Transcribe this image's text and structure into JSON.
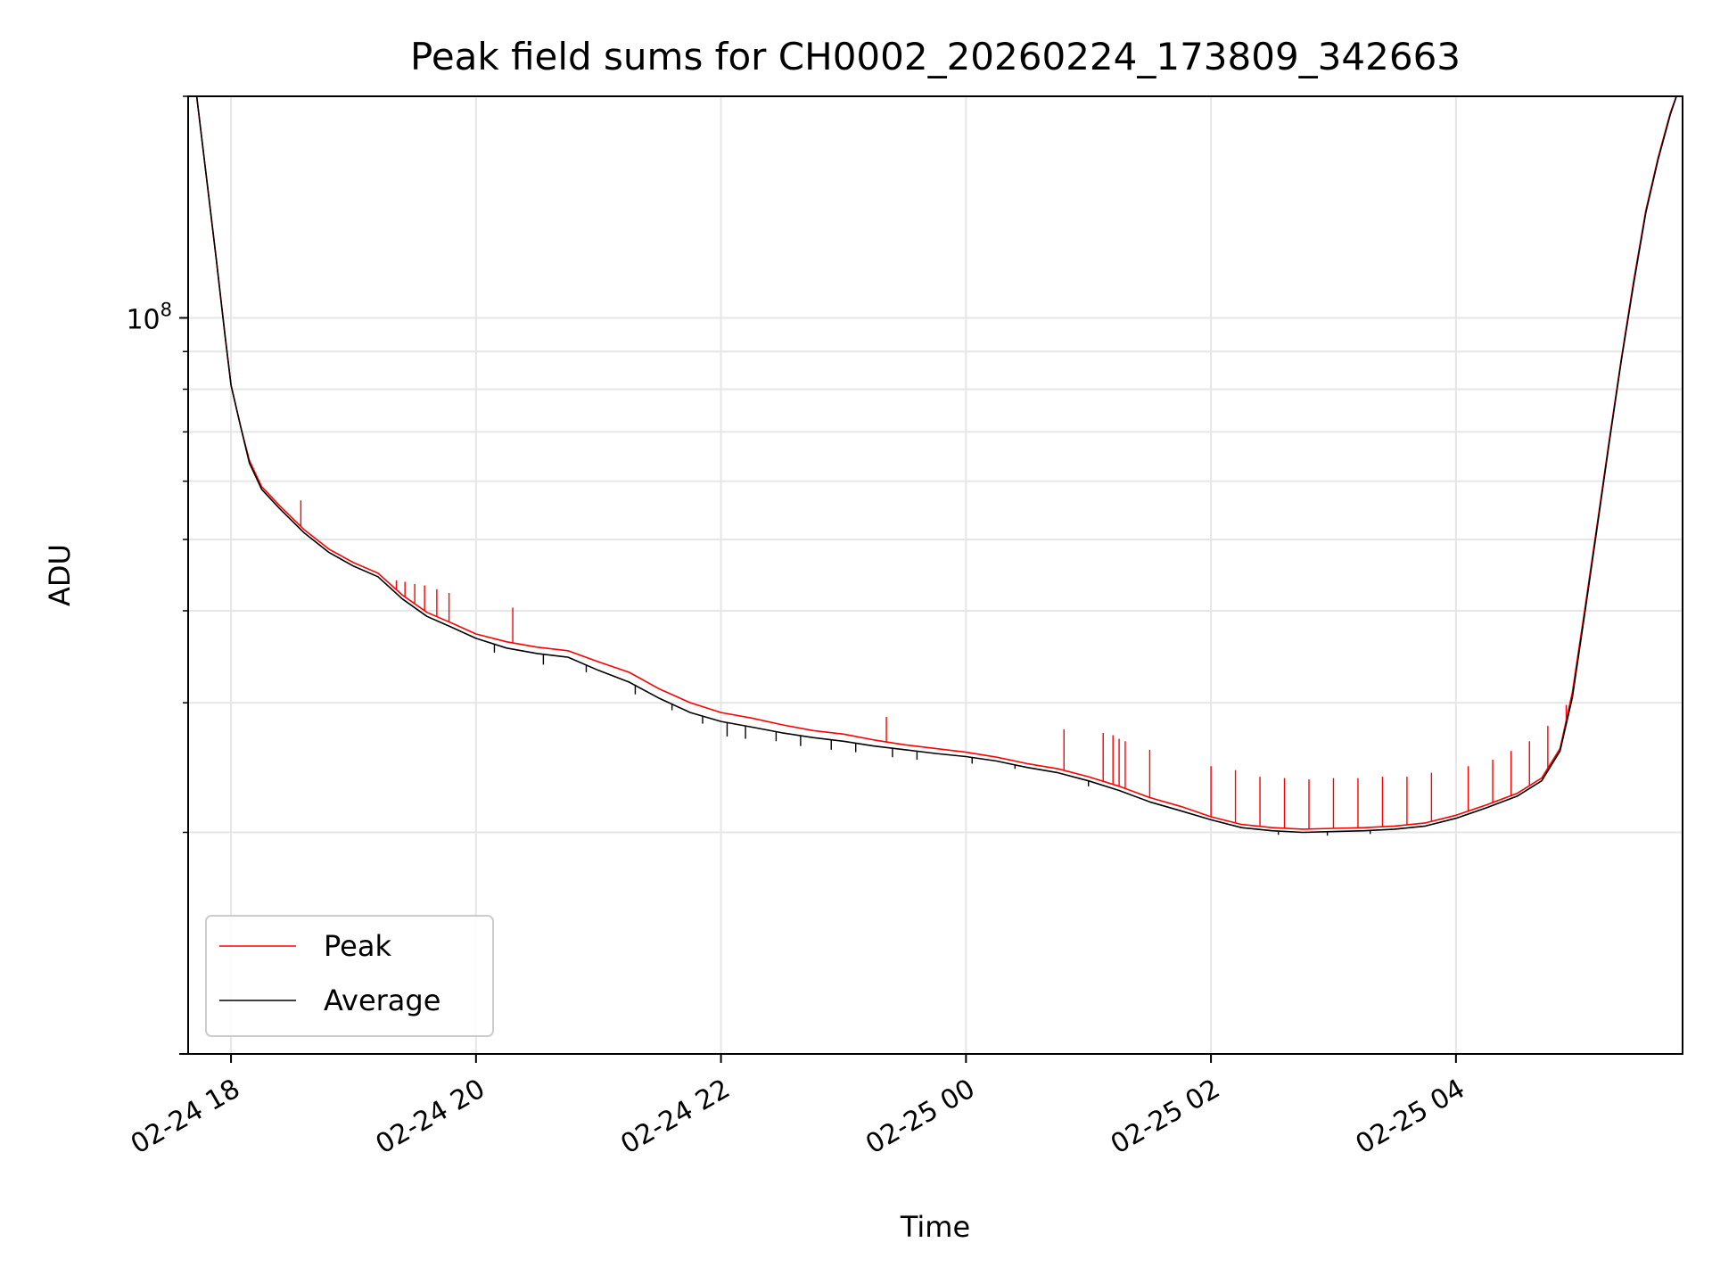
{
  "chart_data": {
    "type": "line",
    "title": "Peak field sums for CH0002_20260224_173809_342663",
    "xlabel": "Time",
    "ylabel": "ADU",
    "yscale": "log",
    "ylim": [
      10000000,
      200000000
    ],
    "xlim": [
      17.65,
      29.85
    ],
    "y_tick_labels": [
      {
        "value": 100000000,
        "base": "10",
        "exp": "8"
      }
    ],
    "x_ticks": [
      {
        "value": 18,
        "label": "02-24 18"
      },
      {
        "value": 20,
        "label": "02-24 20"
      },
      {
        "value": 22,
        "label": "02-24 22"
      },
      {
        "value": 24,
        "label": "02-25 00"
      },
      {
        "value": 26,
        "label": "02-25 02"
      },
      {
        "value": 28,
        "label": "02-25 04"
      }
    ],
    "grid": true,
    "legend_position": "lower-left",
    "series": [
      {
        "name": "Peak",
        "color": "#ff0000",
        "x": [
          17.72,
          17.8,
          17.88,
          17.95,
          18.0,
          18.08,
          18.15,
          18.25,
          18.4,
          18.6,
          18.8,
          19.0,
          19.2,
          19.4,
          19.6,
          19.8,
          20.0,
          20.25,
          20.5,
          20.75,
          21.0,
          21.25,
          21.5,
          21.75,
          22.0,
          22.25,
          22.5,
          22.75,
          23.0,
          23.25,
          23.5,
          23.75,
          24.0,
          24.25,
          24.5,
          24.75,
          25.0,
          25.25,
          25.5,
          25.75,
          26.0,
          26.25,
          26.5,
          26.75,
          27.0,
          27.25,
          27.5,
          27.75,
          28.0,
          28.25,
          28.5,
          28.7,
          28.85,
          28.95,
          29.05,
          29.15,
          29.25,
          29.35,
          29.45,
          29.55,
          29.65,
          29.75,
          29.8
        ],
        "y": [
          200000000,
          155000000,
          120000000,
          95000000,
          81000000,
          71000000,
          64000000,
          59000000,
          55500000,
          51500000,
          48500000,
          46500000,
          45000000,
          42000000,
          39800000,
          38500000,
          37200000,
          36300000,
          35700000,
          35300000,
          34100000,
          33000000,
          31300000,
          30000000,
          29100000,
          28600000,
          28000000,
          27500000,
          27200000,
          26700000,
          26300000,
          26000000,
          25700000,
          25300000,
          24800000,
          24400000,
          23800000,
          23100000,
          22300000,
          21700000,
          21000000,
          20500000,
          20300000,
          20200000,
          20250000,
          20300000,
          20400000,
          20600000,
          21100000,
          21800000,
          22600000,
          23700000,
          26000000,
          31000000,
          40000000,
          52000000,
          68000000,
          88000000,
          112000000,
          140000000,
          165000000,
          190000000,
          200000000
        ],
        "spikes": [
          {
            "x": 18.57,
            "y": 56500000
          },
          {
            "x": 19.35,
            "y": 44000000
          },
          {
            "x": 19.42,
            "y": 43800000
          },
          {
            "x": 19.5,
            "y": 43500000
          },
          {
            "x": 19.58,
            "y": 43300000
          },
          {
            "x": 19.68,
            "y": 42800000
          },
          {
            "x": 19.78,
            "y": 42300000
          },
          {
            "x": 20.3,
            "y": 40400000
          },
          {
            "x": 23.35,
            "y": 28700000
          },
          {
            "x": 24.8,
            "y": 27600000
          },
          {
            "x": 25.12,
            "y": 27300000
          },
          {
            "x": 25.2,
            "y": 27100000
          },
          {
            "x": 25.25,
            "y": 26800000
          },
          {
            "x": 25.3,
            "y": 26600000
          },
          {
            "x": 25.5,
            "y": 25900000
          },
          {
            "x": 26.0,
            "y": 24600000
          },
          {
            "x": 26.2,
            "y": 24300000
          },
          {
            "x": 26.4,
            "y": 23800000
          },
          {
            "x": 26.6,
            "y": 23700000
          },
          {
            "x": 26.8,
            "y": 23600000
          },
          {
            "x": 27.0,
            "y": 23700000
          },
          {
            "x": 27.2,
            "y": 23700000
          },
          {
            "x": 27.4,
            "y": 23800000
          },
          {
            "x": 27.6,
            "y": 23800000
          },
          {
            "x": 27.8,
            "y": 24100000
          },
          {
            "x": 28.1,
            "y": 24600000
          },
          {
            "x": 28.3,
            "y": 25100000
          },
          {
            "x": 28.45,
            "y": 25800000
          },
          {
            "x": 28.6,
            "y": 26600000
          },
          {
            "x": 28.75,
            "y": 27900000
          },
          {
            "x": 28.9,
            "y": 29800000
          }
        ]
      },
      {
        "name": "Average",
        "color": "#000000",
        "x": [
          17.72,
          17.8,
          17.88,
          17.95,
          18.0,
          18.08,
          18.15,
          18.25,
          18.4,
          18.6,
          18.8,
          19.0,
          19.2,
          19.4,
          19.6,
          19.8,
          20.0,
          20.25,
          20.5,
          20.75,
          21.0,
          21.25,
          21.5,
          21.75,
          22.0,
          22.25,
          22.5,
          22.75,
          23.0,
          23.25,
          23.5,
          23.75,
          24.0,
          24.25,
          24.5,
          24.75,
          25.0,
          25.25,
          25.5,
          25.75,
          26.0,
          26.25,
          26.5,
          26.75,
          27.0,
          27.25,
          27.5,
          27.75,
          28.0,
          28.25,
          28.5,
          28.7,
          28.85,
          28.95,
          29.05,
          29.15,
          29.25,
          29.35,
          29.45,
          29.55,
          29.65,
          29.75,
          29.8
        ],
        "y": [
          200000000,
          155000000,
          120000000,
          95000000,
          81000000,
          71000000,
          63500000,
          58500000,
          55000000,
          51000000,
          48000000,
          46000000,
          44500000,
          41500000,
          39300000,
          38000000,
          36700000,
          35600000,
          35000000,
          34600000,
          33200000,
          32000000,
          30400000,
          29100000,
          28300000,
          27800000,
          27300000,
          26900000,
          26600000,
          26200000,
          25900000,
          25600000,
          25350000,
          25000000,
          24500000,
          24100000,
          23500000,
          22800000,
          22000000,
          21400000,
          20800000,
          20300000,
          20100000,
          20000000,
          20050000,
          20100000,
          20200000,
          20400000,
          20900000,
          21600000,
          22400000,
          23500000,
          25800000,
          30500000,
          39500000,
          51500000,
          67500000,
          87500000,
          111000000,
          139000000,
          164000000,
          189000000,
          200000000
        ],
        "dips": [
          {
            "x": 20.15,
            "y": 35100000
          },
          {
            "x": 20.55,
            "y": 33800000
          },
          {
            "x": 20.9,
            "y": 33000000
          },
          {
            "x": 21.3,
            "y": 30800000
          },
          {
            "x": 21.6,
            "y": 29300000
          },
          {
            "x": 21.85,
            "y": 28100000
          },
          {
            "x": 22.05,
            "y": 27000000
          },
          {
            "x": 22.2,
            "y": 26800000
          },
          {
            "x": 22.45,
            "y": 26600000
          },
          {
            "x": 22.65,
            "y": 26200000
          },
          {
            "x": 22.9,
            "y": 25900000
          },
          {
            "x": 23.1,
            "y": 25700000
          },
          {
            "x": 23.4,
            "y": 25300000
          },
          {
            "x": 23.6,
            "y": 25100000
          },
          {
            "x": 24.05,
            "y": 24800000
          },
          {
            "x": 24.4,
            "y": 24400000
          },
          {
            "x": 25.0,
            "y": 23100000
          },
          {
            "x": 26.55,
            "y": 19850000
          },
          {
            "x": 26.95,
            "y": 19800000
          },
          {
            "x": 27.3,
            "y": 19900000
          }
        ]
      }
    ]
  }
}
